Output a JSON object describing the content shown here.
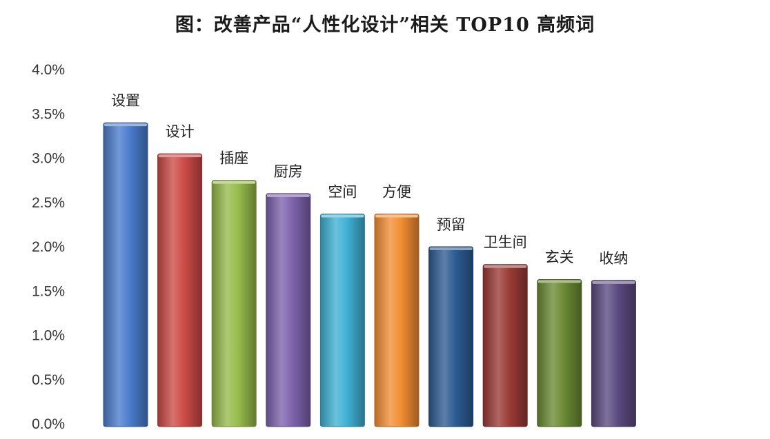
{
  "chart_data": {
    "type": "bar",
    "title": "图：改善产品“人性化设计”相关 TOP10 高频词",
    "categories": [
      "设置",
      "设计",
      "插座",
      "厨房",
      "空间",
      "方便",
      "预留",
      "卫生间",
      "玄关",
      "收纳"
    ],
    "values": [
      3.4,
      3.05,
      2.75,
      2.6,
      2.37,
      2.37,
      2.0,
      1.8,
      1.63,
      1.62
    ],
    "unit": "%",
    "ylim": [
      0,
      4.0
    ],
    "yticks": [
      "0.0%",
      "0.5%",
      "1.0%",
      "1.5%",
      "2.0%",
      "2.5%",
      "3.0%",
      "3.5%",
      "4.0%"
    ],
    "grid": false,
    "legend": "none",
    "bar_colors": [
      "#4a7ccc",
      "#cc4a47",
      "#97bb4b",
      "#7d62ad",
      "#3fb1d4",
      "#f28e34",
      "#2d5c93",
      "#9a3a36",
      "#6a8a33",
      "#5a4a80"
    ]
  }
}
